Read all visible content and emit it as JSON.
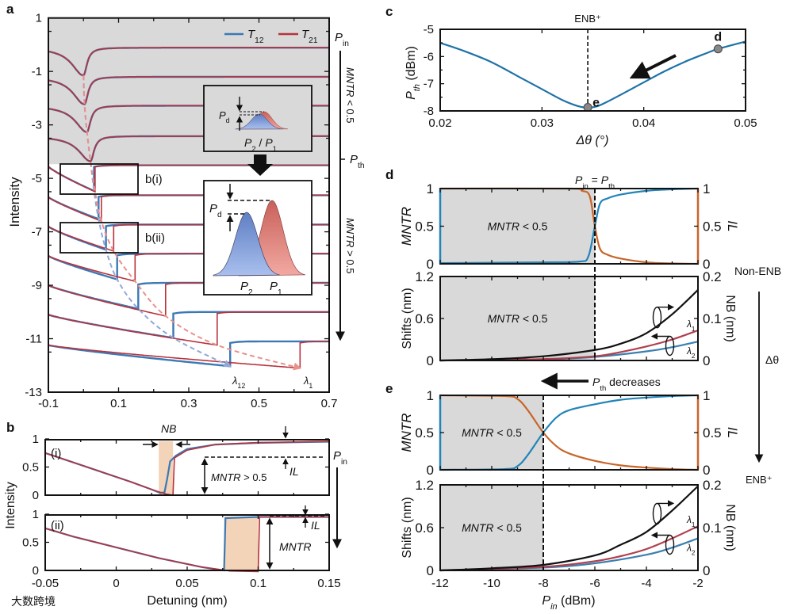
{
  "chart_data": [
    {
      "panel": "a",
      "panel_letter": "a",
      "type": "line",
      "ylabel": "Intensity",
      "xlim": [
        -0.1,
        0.7
      ],
      "ylim": [
        -13,
        1
      ],
      "xticks": [
        "-0.1",
        "0.1",
        "0.3",
        "0.5",
        "0.7"
      ],
      "yticks": [
        "1",
        "-1",
        "-3",
        "-5",
        "-7",
        "-9",
        "-11",
        "-13"
      ],
      "legend": [
        {
          "name": "T",
          "sub": "12",
          "color": "#3b78b5"
        },
        {
          "name": "T",
          "sub": "21",
          "color": "#b8323c"
        }
      ],
      "gray_region_ymin": -4.47,
      "traces": [
        {
          "kind": "dip",
          "base": -0.11,
          "dip_x": 0.0,
          "dip_min": -1.15
        },
        {
          "kind": "dip",
          "base": -1.2,
          "dip_x": 0.003,
          "dip_min": -2.23
        },
        {
          "kind": "dip",
          "base": -2.28,
          "dip_x": 0.01,
          "dip_min": -3.27
        },
        {
          "kind": "dip",
          "base": -3.42,
          "dip_x": 0.02,
          "dip_min": -4.36
        },
        {
          "kind": "jump",
          "base": -4.51,
          "left": -4.56,
          "T12": {
            "jump_x": 0.03,
            "min": -5.47
          },
          "T21": {
            "jump_x": 0.033,
            "min": -5.5
          }
        },
        {
          "kind": "jump",
          "base": -5.63,
          "left": -5.7,
          "T12": {
            "jump_x": 0.043,
            "min": -6.52
          },
          "T21": {
            "jump_x": 0.051,
            "min": -6.6
          }
        },
        {
          "kind": "jump",
          "base": -6.73,
          "left": -6.8,
          "T12": {
            "jump_x": 0.064,
            "min": -7.67
          },
          "T21": {
            "jump_x": 0.086,
            "min": -7.72
          }
        },
        {
          "kind": "jump",
          "base": -7.82,
          "left": -7.9,
          "T12": {
            "jump_x": 0.096,
            "min": -8.78
          },
          "T21": {
            "jump_x": 0.147,
            "min": -8.85
          }
        },
        {
          "kind": "jump",
          "base": -8.91,
          "left": -9.0,
          "T12": {
            "jump_x": 0.156,
            "min": -9.88
          },
          "T21": {
            "jump_x": 0.234,
            "min": -10.15
          }
        },
        {
          "kind": "jump",
          "base": -10.0,
          "left": -10.1,
          "T12": {
            "jump_x": 0.256,
            "min": -10.97
          },
          "T21": {
            "jump_x": 0.381,
            "min": -11.24
          }
        },
        {
          "kind": "jump",
          "base": -11.1,
          "left": -11.24,
          "T12": {
            "jump_x": 0.418,
            "min": -12.03
          },
          "T21": {
            "jump_x": 0.617,
            "min": -12.1
          }
        }
      ],
      "annotations": {
        "p": "P",
        "in": "in",
        "th": "th",
        "mntr": "MNTR",
        "lt05": " < 0.5",
        "gt05": " > 0.5",
        "bi": "b(i)",
        "bii": "b(ii)",
        "pd": "P",
        "d": "d",
        "p2": "P",
        "two": "2",
        "slash": " / ",
        "p1": "P",
        "one": "1",
        "lambda2": "λ",
        "lambda1": "λ"
      }
    },
    {
      "panel": "b",
      "panel_letter": "b",
      "type": "line",
      "xlabel": "Detuning (nm)",
      "ylabel": "Intensity",
      "xlim": [
        -0.05,
        0.15
      ],
      "xticks": [
        "-0.05",
        "0",
        "0.05",
        "0.1",
        "0.15"
      ],
      "yticks": [
        "0",
        "0.5",
        "1"
      ],
      "subplots": [
        {
          "label": "(i)",
          "ylim": [
            0,
            1
          ],
          "T12": [
            [
              -0.05,
              0.75
            ],
            [
              -0.03,
              0.58
            ],
            [
              -0.01,
              0.41
            ],
            [
              0.01,
              0.24
            ],
            [
              0.025,
              0.1
            ],
            [
              0.031,
              0.04
            ],
            [
              0.034,
              0.05
            ],
            [
              0.036,
              0.3
            ],
            [
              0.038,
              0.6
            ],
            [
              0.042,
              0.7
            ],
            [
              0.05,
              0.82
            ],
            [
              0.07,
              0.9
            ],
            [
              0.1,
              0.93
            ],
            [
              0.15,
              0.95
            ]
          ],
          "T21": [
            [
              -0.05,
              0.75
            ],
            [
              -0.03,
              0.58
            ],
            [
              -0.01,
              0.41
            ],
            [
              0.01,
              0.24
            ],
            [
              0.025,
              0.1
            ],
            [
              0.035,
              0.02
            ],
            [
              0.04,
              0.0
            ],
            [
              0.041,
              0.66
            ],
            [
              0.05,
              0.8
            ],
            [
              0.07,
              0.9
            ],
            [
              0.1,
              0.935
            ],
            [
              0.15,
              0.955
            ]
          ],
          "nb_region": [
            0.03,
            0.04
          ],
          "annotations": {
            "nb": "NB",
            "il": "IL",
            "mntr": "MNTR",
            "gt05": " > 0.5"
          }
        },
        {
          "label": "(ii)",
          "ylim": [
            0,
            1
          ],
          "T12": [
            [
              -0.05,
              0.75
            ],
            [
              -0.03,
              0.6
            ],
            [
              0.0,
              0.41
            ],
            [
              0.03,
              0.22
            ],
            [
              0.06,
              0.06
            ],
            [
              0.076,
              0.0
            ],
            [
              0.077,
              0.93
            ],
            [
              0.1,
              0.95
            ],
            [
              0.15,
              0.95
            ]
          ],
          "T21": [
            [
              -0.05,
              0.75
            ],
            [
              -0.03,
              0.6
            ],
            [
              0.0,
              0.41
            ],
            [
              0.03,
              0.22
            ],
            [
              0.06,
              0.06
            ],
            [
              0.08,
              -0.01
            ],
            [
              0.1,
              -0.02
            ],
            [
              0.101,
              0.95
            ],
            [
              0.15,
              0.95
            ]
          ],
          "nb_region": [
            0.076,
            0.1
          ],
          "annotations": {
            "il": "IL",
            "mntr": "MNTR"
          }
        }
      ],
      "pin": {
        "p": "P",
        "in": "in"
      }
    },
    {
      "panel": "c",
      "panel_letter": "c",
      "type": "line",
      "xlabel": "Δθ (°)",
      "ylabel_main": "P",
      "ylabel_sub": "th",
      "ylabel_unit": " (dBm)",
      "xlim": [
        0.02,
        0.05
      ],
      "ylim": [
        -8,
        -5
      ],
      "xticks": [
        "0.02",
        "0.03",
        "0.04",
        "0.05"
      ],
      "yticks": [
        "-5",
        "-6",
        "-7",
        "-8"
      ],
      "curve": [
        [
          0.02,
          -5.5
        ],
        [
          0.022,
          -5.75
        ],
        [
          0.025,
          -6.2
        ],
        [
          0.028,
          -6.8
        ],
        [
          0.03,
          -7.2
        ],
        [
          0.032,
          -7.6
        ],
        [
          0.0335,
          -7.82
        ],
        [
          0.0345,
          -7.88
        ],
        [
          0.0355,
          -7.82
        ],
        [
          0.037,
          -7.55
        ],
        [
          0.04,
          -6.95
        ],
        [
          0.042,
          -6.55
        ],
        [
          0.044,
          -6.2
        ],
        [
          0.046,
          -5.9
        ],
        [
          0.0473,
          -5.72
        ],
        [
          0.05,
          -5.45
        ]
      ],
      "points": [
        {
          "label": "d",
          "x": 0.0473,
          "y": -5.72
        },
        {
          "label": "e",
          "x": 0.0345,
          "y": -7.87
        }
      ],
      "vline_x": 0.0345,
      "vline_label": "ENB⁺"
    },
    {
      "panel": "d",
      "panel_letter": "d",
      "type": "line",
      "xlim": [
        -12,
        -2
      ],
      "threshold_x": -6,
      "threshold_label": {
        "p": "P",
        "in": "in",
        "eq": " = ",
        "p2": "P",
        "th": "th"
      },
      "top": {
        "ylabel_left": "MNTR",
        "ylabel_right": "IL",
        "yticks": [
          "0",
          "0.5",
          "1"
        ],
        "ylim": [
          0,
          1
        ],
        "shade_label": {
          "mntr": "MNTR",
          "lt": " < 0.5"
        },
        "MNTR": [
          [
            -12,
            0.01
          ],
          [
            -8,
            0.02
          ],
          [
            -6.6,
            0.03
          ],
          [
            -6.25,
            0.1
          ],
          [
            -6.0,
            0.5
          ],
          [
            -5.8,
            0.8
          ],
          [
            -5.5,
            0.87
          ],
          [
            -5,
            0.92
          ],
          [
            -4,
            0.97
          ],
          [
            -3,
            0.99
          ],
          [
            -2,
            1
          ]
        ],
        "IL": [
          [
            -12,
            1
          ],
          [
            -7,
            1
          ],
          [
            -6.5,
            0.97
          ],
          [
            -6.2,
            0.9
          ],
          [
            -6.0,
            0.5
          ],
          [
            -5.8,
            0.2
          ],
          [
            -5.5,
            0.12
          ],
          [
            -5,
            0.07
          ],
          [
            -4,
            0.02
          ],
          [
            -3,
            0.005
          ],
          [
            -2,
            0
          ]
        ]
      },
      "bottom": {
        "ylabel_left": "Shifts (nm)",
        "ylabel_right": "NB (nm)",
        "yticks_left": [
          "0",
          "0.6",
          "1.2"
        ],
        "yticks_right": [
          "0",
          "0.1",
          "0.2"
        ],
        "ylim_left": [
          0,
          1.2
        ],
        "ylim_right": [
          0,
          0.2
        ],
        "shade_label": {
          "mntr": "MNTR",
          "lt": " < 0.5"
        },
        "NB": [
          [
            -12,
            0
          ],
          [
            -10,
            0.003
          ],
          [
            -8,
            0.01
          ],
          [
            -6,
            0.025
          ],
          [
            -5,
            0.04
          ],
          [
            -4,
            0.065
          ],
          [
            -3,
            0.11
          ],
          [
            -2,
            0.168
          ]
        ],
        "lambda1": [
          [
            -12,
            0
          ],
          [
            -8,
            0.02
          ],
          [
            -6,
            0.06
          ],
          [
            -5,
            0.12
          ],
          [
            -4,
            0.2
          ],
          [
            -3,
            0.3
          ],
          [
            -2,
            0.43
          ]
        ],
        "lambda2": [
          [
            -12,
            0
          ],
          [
            -8,
            0.015
          ],
          [
            -6,
            0.05
          ],
          [
            -4,
            0.13
          ],
          [
            -3,
            0.19
          ],
          [
            -2,
            0.27
          ]
        ],
        "labels": {
          "l": "λ",
          "one": "1",
          "two": "2"
        }
      }
    },
    {
      "panel": "e",
      "panel_letter": "e",
      "type": "line",
      "xlim": [
        -12,
        -2
      ],
      "xlabel": {
        "p": "P",
        "in": "in",
        "unit": " (dBm)"
      },
      "xticks": [
        "-12",
        "-10",
        "-8",
        "-6",
        "-4",
        "-2"
      ],
      "threshold_x": -8,
      "top": {
        "ylabel_left": "MNTR",
        "ylabel_right": "IL",
        "yticks": [
          "0",
          "0.5",
          "1"
        ],
        "ylim": [
          0,
          1
        ],
        "shade_label": {
          "mntr": "MNTR",
          "lt": " < 0.5"
        },
        "MNTR": [
          [
            -12,
            0
          ],
          [
            -9.5,
            0.01
          ],
          [
            -9,
            0.05
          ],
          [
            -8.6,
            0.2
          ],
          [
            -8,
            0.5
          ],
          [
            -7.5,
            0.7
          ],
          [
            -7,
            0.8
          ],
          [
            -6,
            0.88
          ],
          [
            -5,
            0.94
          ],
          [
            -4,
            0.97
          ],
          [
            -3,
            0.99
          ],
          [
            -2,
            1
          ]
        ],
        "IL": [
          [
            -12,
            1
          ],
          [
            -9.5,
            0.99
          ],
          [
            -9,
            0.95
          ],
          [
            -8.6,
            0.8
          ],
          [
            -8,
            0.5
          ],
          [
            -7.5,
            0.32
          ],
          [
            -7,
            0.22
          ],
          [
            -6,
            0.12
          ],
          [
            -5,
            0.06
          ],
          [
            -4,
            0.03
          ],
          [
            -3,
            0.01
          ],
          [
            -2,
            0
          ]
        ]
      },
      "bottom": {
        "ylabel_left": "Shifts (nm)",
        "ylabel_right": "NB (nm)",
        "yticks_left": [
          "0",
          "0.6",
          "1.2"
        ],
        "yticks_right": [
          "0",
          "0.1",
          "0.2"
        ],
        "ylim_left": [
          0,
          1.2
        ],
        "ylim_right": [
          0,
          0.2
        ],
        "shade_label": {
          "mntr": "MNTR",
          "lt": " < 0.5"
        },
        "NB": [
          [
            -12,
            0
          ],
          [
            -10,
            0.005
          ],
          [
            -8,
            0.013
          ],
          [
            -6,
            0.035
          ],
          [
            -5,
            0.06
          ],
          [
            -4,
            0.09
          ],
          [
            -3,
            0.14
          ],
          [
            -2,
            0.197
          ]
        ],
        "lambda1": [
          [
            -12,
            0
          ],
          [
            -8,
            0.05
          ],
          [
            -6,
            0.13
          ],
          [
            -5,
            0.2
          ],
          [
            -4,
            0.3
          ],
          [
            -3,
            0.45
          ],
          [
            -2,
            0.62
          ]
        ],
        "lambda2": [
          [
            -12,
            0
          ],
          [
            -8,
            0.04
          ],
          [
            -6,
            0.1
          ],
          [
            -4,
            0.22
          ],
          [
            -3,
            0.32
          ],
          [
            -2,
            0.45
          ]
        ],
        "labels": {
          "l": "λ",
          "one": "1",
          "two": "2"
        }
      }
    }
  ],
  "side": {
    "non_enb": "Non-ENB",
    "dtheta": "Δθ",
    "enb": "ENB⁺",
    "pth_decreases": {
      "p": "P",
      "th": "th",
      "text": " decreases"
    }
  },
  "colors": {
    "t12": "#3b78b5",
    "t21": "#b8323c",
    "mntr": "#2384b8",
    "il": "#c8652a",
    "shade": "#d9d9d9",
    "nb_fill": "#f3d4b8"
  },
  "watermark": "大数跨境"
}
